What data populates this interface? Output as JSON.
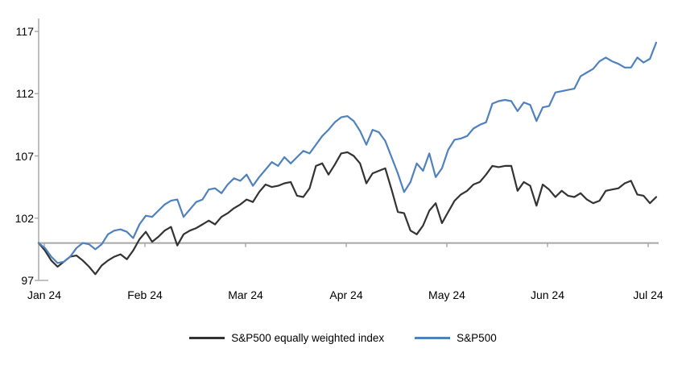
{
  "chart_data": {
    "type": "line",
    "title": "",
    "xlabel": "",
    "ylabel": "",
    "x_tick_labels": [
      "Jan 24",
      "Feb 24",
      "Mar 24",
      "Apr 24",
      "May 24",
      "Jun 24",
      "Jul 24"
    ],
    "y_ticks": [
      97,
      102,
      107,
      112,
      117
    ],
    "ylim": [
      97,
      118
    ],
    "baseline_value": 100,
    "grid": false,
    "legend_position": "bottom-center",
    "axis_color": "#a6a6a6",
    "text_color": "#000000",
    "series": [
      {
        "name": "S&P500 equally weighted index",
        "color": "#333333",
        "values": [
          100.0,
          99.4,
          98.6,
          98.1,
          98.5,
          98.9,
          99.0,
          98.6,
          98.1,
          97.5,
          98.2,
          98.6,
          98.9,
          99.1,
          98.7,
          99.4,
          100.3,
          100.9,
          100.1,
          100.5,
          101.0,
          101.3,
          99.8,
          100.7,
          101.0,
          101.2,
          101.5,
          101.8,
          101.5,
          102.1,
          102.4,
          102.8,
          103.1,
          103.5,
          103.3,
          104.1,
          104.7,
          104.5,
          104.6,
          104.8,
          104.9,
          103.8,
          103.7,
          104.4,
          106.2,
          106.4,
          105.5,
          106.3,
          107.2,
          107.3,
          107.0,
          106.4,
          104.8,
          105.6,
          105.8,
          106.0,
          104.3,
          102.5,
          102.4,
          101.0,
          100.7,
          101.4,
          102.6,
          103.2,
          101.6,
          102.5,
          103.4,
          103.9,
          104.2,
          104.7,
          104.9,
          105.5,
          106.2,
          106.1,
          106.2,
          106.2,
          104.2,
          104.9,
          104.6,
          103.0,
          104.7,
          104.3,
          103.7,
          104.2,
          103.8,
          103.7,
          104.0,
          103.5,
          103.2,
          103.4,
          104.2,
          104.3,
          104.4,
          104.8,
          105.0,
          103.9,
          103.8,
          103.2,
          103.7
        ]
      },
      {
        "name": "S&P500",
        "color": "#4f81bd",
        "values": [
          100.0,
          99.6,
          98.9,
          98.4,
          98.5,
          98.9,
          99.6,
          100.0,
          99.9,
          99.5,
          99.9,
          100.7,
          101.0,
          101.1,
          100.9,
          100.4,
          101.5,
          102.2,
          102.1,
          102.6,
          103.1,
          103.4,
          103.5,
          102.1,
          102.7,
          103.3,
          103.5,
          104.3,
          104.4,
          104.0,
          104.7,
          105.2,
          105.0,
          105.5,
          104.6,
          105.3,
          105.9,
          106.5,
          106.2,
          106.9,
          106.4,
          106.9,
          107.4,
          107.2,
          107.9,
          108.6,
          109.1,
          109.7,
          110.1,
          110.2,
          109.8,
          109.0,
          107.9,
          109.1,
          108.9,
          108.2,
          106.9,
          105.6,
          104.1,
          104.9,
          106.4,
          105.8,
          107.2,
          105.3,
          106.0,
          107.5,
          108.3,
          108.4,
          108.6,
          109.2,
          109.5,
          109.7,
          111.2,
          111.4,
          111.5,
          111.4,
          110.6,
          111.3,
          111.1,
          109.8,
          110.9,
          111.0,
          112.1,
          112.2,
          112.3,
          112.4,
          113.4,
          113.7,
          114.0,
          114.6,
          114.9,
          114.6,
          114.4,
          114.1,
          114.1,
          114.9,
          114.5,
          114.8,
          116.1
        ]
      }
    ]
  },
  "legend": {
    "items": [
      {
        "label": "S&P500 equally weighted index"
      },
      {
        "label": "S&P500"
      }
    ]
  }
}
